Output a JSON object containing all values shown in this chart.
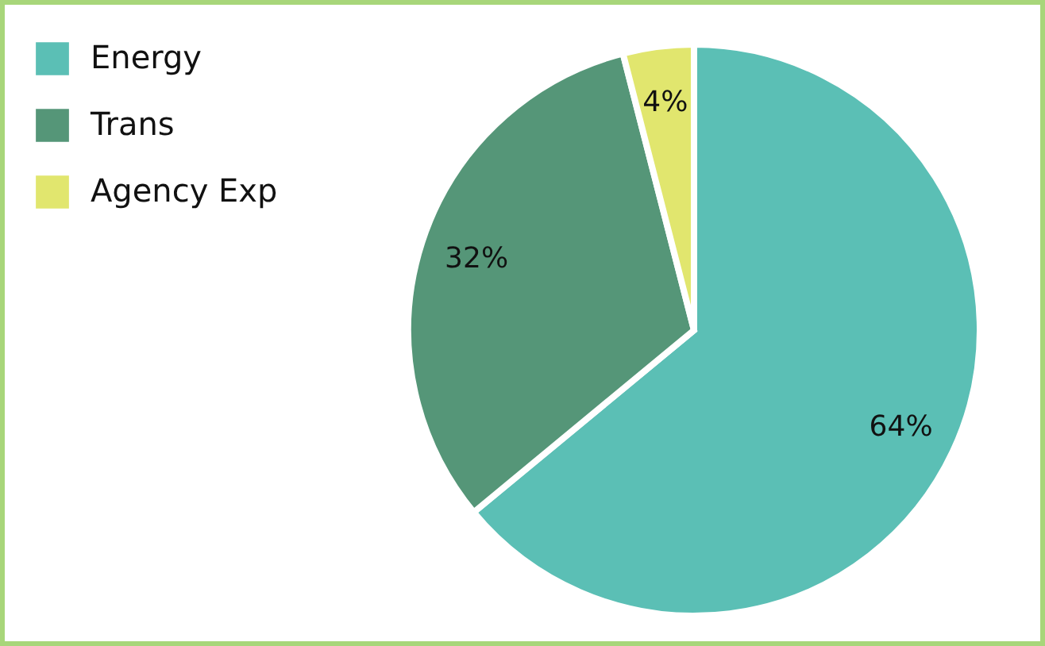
{
  "chart_data": {
    "type": "pie",
    "categories": [
      "Energy",
      "Trans",
      "Agency Exp"
    ],
    "values": [
      64,
      32,
      4
    ],
    "colors": [
      "#5bbfb5",
      "#559678",
      "#e1e66e"
    ],
    "value_labels": [
      "64%",
      "32%",
      "4%"
    ],
    "legend": "top left"
  }
}
